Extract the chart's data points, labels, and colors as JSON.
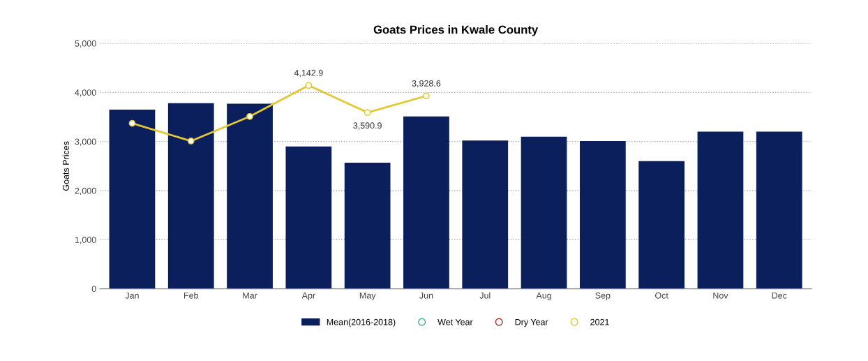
{
  "chart_data": {
    "type": "bar",
    "title": "Goats Prices in Kwale County",
    "ylabel": "Goats Prices",
    "categories": [
      "Jan",
      "Feb",
      "Mar",
      "Apr",
      "May",
      "Jun",
      "Jul",
      "Aug",
      "Sep",
      "Oct",
      "Nov",
      "Dec"
    ],
    "series": [
      {
        "name": "Mean(2016-2018)",
        "color": "#0b1f5c",
        "values": [
          3650,
          3780,
          3770,
          2900,
          2570,
          3510,
          3020,
          3100,
          3010,
          2600,
          3200,
          3200
        ]
      },
      {
        "name": "Wet Year",
        "type": "line",
        "color": "#3cb38a",
        "values": [
          null,
          null,
          null,
          null,
          null,
          null,
          null,
          null,
          null,
          null,
          null,
          null
        ]
      },
      {
        "name": "Dry Year",
        "type": "line",
        "color": "#b0302f",
        "values": [
          null,
          null,
          null,
          null,
          null,
          null,
          null,
          null,
          null,
          null,
          null,
          null
        ]
      },
      {
        "name": "2021",
        "type": "line",
        "color": "#e3c832",
        "values": [
          3370,
          3010,
          3510,
          4142.9,
          3590.9,
          3928.6,
          null,
          null,
          null,
          null,
          null,
          null
        ],
        "value_labels": [
          null,
          null,
          null,
          "4,142.9",
          "3,590.9",
          "3,928.6",
          null,
          null,
          null,
          null,
          null,
          null
        ]
      }
    ],
    "ylim": [
      0,
      5000
    ],
    "yticks": [
      {
        "value": 0,
        "label": "0"
      },
      {
        "value": 1000,
        "label": "1,000"
      },
      {
        "value": 2000,
        "label": "2,000"
      },
      {
        "value": 3000,
        "label": "3,000"
      },
      {
        "value": 4000,
        "label": "4,000"
      },
      {
        "value": 5000,
        "label": "5,000"
      }
    ],
    "grid": "y",
    "legend": "bottom",
    "marker": "circle",
    "line_style": "solid"
  }
}
